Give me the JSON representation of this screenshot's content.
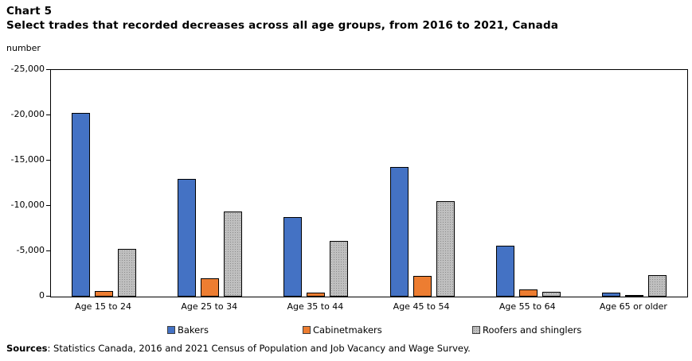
{
  "header": {
    "chart_label": "Chart 5",
    "title": "Select trades that recorded decreases across all age groups, from 2016 to 2021, Canada",
    "unit": "number"
  },
  "chart_data": {
    "type": "bar",
    "title": "Select trades that recorded decreases across all age groups, from 2016 to 2021, Canada",
    "unit_label": "number",
    "categories": [
      "Age 15 to 24",
      "Age 25 to 34",
      "Age 35 to 44",
      "Age 45 to 54",
      "Age 55 to 64",
      "Age 65 or older"
    ],
    "series": [
      {
        "name": "Bakers",
        "color": "#4472C4",
        "pattern": "solid",
        "values": [
          -20300,
          -13000,
          -8800,
          -14300,
          -5600,
          -450
        ]
      },
      {
        "name": "Cabinetmakers",
        "color": "#ED7D31",
        "pattern": "solid",
        "values": [
          -600,
          -2000,
          -450,
          -2300,
          -750,
          -150
        ]
      },
      {
        "name": "Roofers and shinglers",
        "color": "#BFBFBF",
        "pattern": "dotted",
        "values": [
          -5300,
          -9400,
          -6100,
          -10500,
          -550,
          -2400
        ]
      }
    ],
    "yaxis": {
      "min": -25000,
      "max": 0,
      "tick_interval": 5000,
      "inverted_magnitude_up": true,
      "tick_labels_top_to_bottom": [
        "-25,000",
        "-20,000",
        "-15,000",
        "-10,000",
        "-5,000",
        "0"
      ]
    },
    "grid": false,
    "legend_position": "bottom"
  },
  "sources": {
    "label": "Sources",
    "text": ": Statistics Canada, 2016 and 2021 Census of Population and Job Vacancy and Wage Survey."
  }
}
